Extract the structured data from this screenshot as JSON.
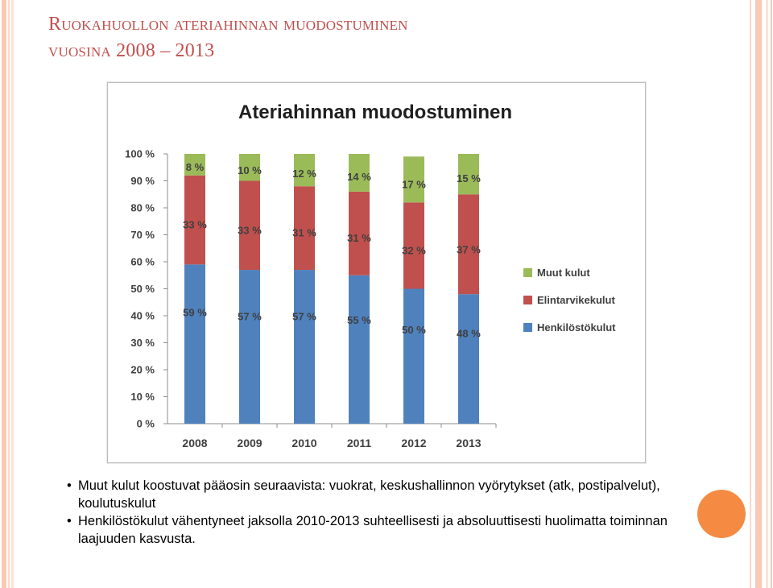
{
  "slide": {
    "title_line1": "Ruokahuollon ateriahinnan muodostuminen",
    "title_line2": "vuosina 2008 – 2013"
  },
  "colors": {
    "accent": "#c0504d",
    "series_henkilosto": "#4f81bd",
    "series_elintarvike": "#c0504d",
    "series_muut": "#9bbb59",
    "orange_circle": "#f58b43"
  },
  "chart_data": {
    "type": "bar",
    "stacked": true,
    "title": "Ateriahinnan muodostuminen",
    "categories": [
      "2008",
      "2009",
      "2010",
      "2011",
      "2012",
      "2013"
    ],
    "series": [
      {
        "name": "Henkilöstökulut",
        "values": [
          59,
          57,
          57,
          55,
          50,
          48
        ],
        "labels": [
          "59 %",
          "57 %",
          "57 %",
          "55 %",
          "50 %",
          "48 %"
        ],
        "color": "#4f81bd"
      },
      {
        "name": "Elintarvikekulut",
        "values": [
          33,
          33,
          31,
          31,
          32,
          37
        ],
        "labels": [
          "33 %",
          "33 %",
          "31 %",
          "31 %",
          "32 %",
          "37 %"
        ],
        "color": "#c0504d"
      },
      {
        "name": "Muut kulut",
        "values": [
          8,
          10,
          12,
          14,
          17,
          15
        ],
        "labels": [
          "8 %",
          "10 %",
          "12 %",
          "14 %",
          "17 %",
          "15 %"
        ],
        "color": "#9bbb59"
      }
    ],
    "ylim": [
      0,
      100
    ],
    "yticks": [
      "0 %",
      "10 %",
      "20 %",
      "30 %",
      "40 %",
      "50 %",
      "60 %",
      "70 %",
      "80 %",
      "90 %",
      "100 %"
    ],
    "grid": false,
    "legend_position": "right",
    "legend": [
      "Muut kulut",
      "Elintarvikekulut",
      "Henkilöstökulut"
    ]
  },
  "bullets": [
    {
      "text": "Muut kulut koostuvat pääosin seuraavista: vuokrat, keskushallinnon vyörytykset (atk, postipalvelut), koulutuskulut"
    },
    {
      "text": "Henkilöstökulut vähentyneet jaksolla 2010-2013 suhteellisesti ja absoluuttisesti huolimatta toiminnan laajuuden kasvusta."
    }
  ]
}
